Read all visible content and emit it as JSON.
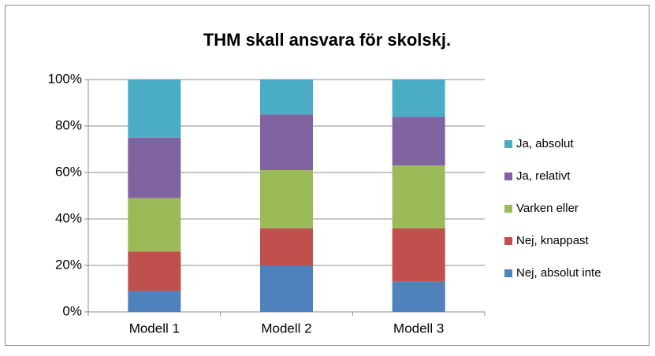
{
  "chart_data": {
    "type": "stacked_bar",
    "title": "THM skall ansvara för skolskj.",
    "categories": [
      "Modell 1",
      "Modell 2",
      "Modell 3"
    ],
    "series": [
      {
        "name": "Nej, absolut inte",
        "color": "#4f81bd",
        "values": [
          9,
          20,
          13
        ]
      },
      {
        "name": "Nej, knappast",
        "color": "#c0504d",
        "values": [
          17,
          16,
          23
        ]
      },
      {
        "name": "Varken eller",
        "color": "#9bbb59",
        "values": [
          23,
          25,
          27
        ]
      },
      {
        "name": "Ja, relativt",
        "color": "#8064a2",
        "values": [
          26,
          24,
          21
        ]
      },
      {
        "name": "Ja, absolut",
        "color": "#4bacc6",
        "values": [
          25,
          15,
          16
        ]
      }
    ],
    "ylim": [
      0,
      100
    ],
    "yticks": [
      {
        "value": 0,
        "label": "0%"
      },
      {
        "value": 20,
        "label": "20%"
      },
      {
        "value": 40,
        "label": "40%"
      },
      {
        "value": 60,
        "label": "60%"
      },
      {
        "value": 80,
        "label": "80%"
      },
      {
        "value": 100,
        "label": "100%"
      }
    ],
    "grid": true,
    "legend": "right"
  }
}
